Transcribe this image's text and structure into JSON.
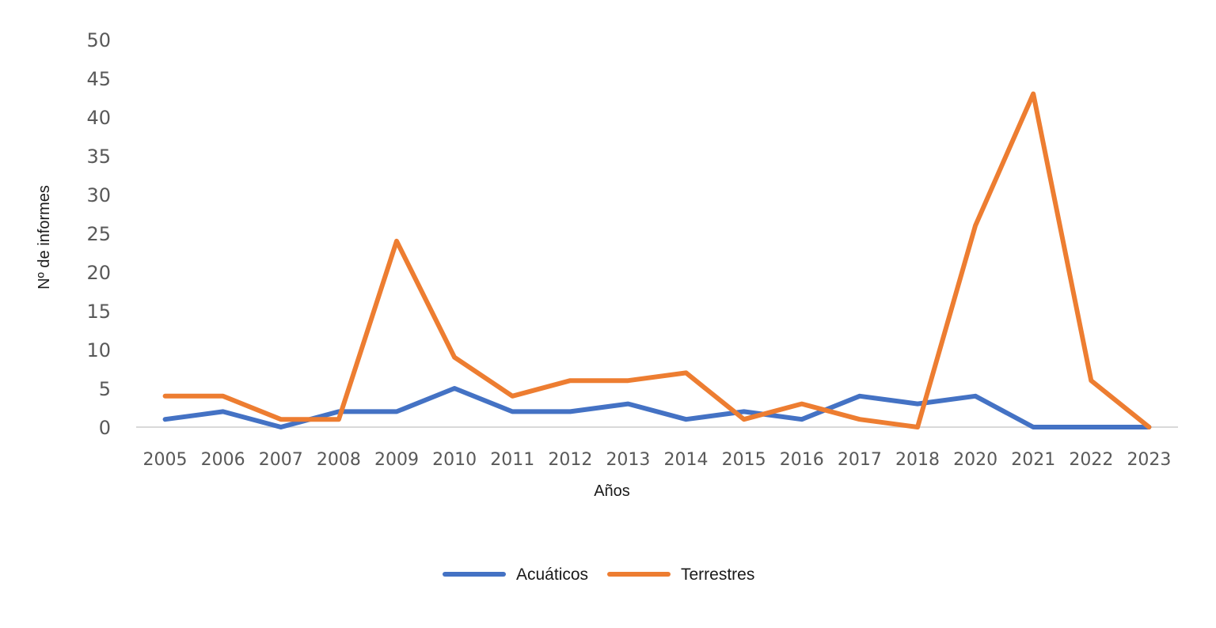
{
  "chart_data": {
    "type": "line",
    "title": "",
    "xlabel": "Años",
    "ylabel": "Nº de informes",
    "categories": [
      "2005",
      "2006",
      "2007",
      "2008",
      "2009",
      "2010",
      "2011",
      "2012",
      "2013",
      "2014",
      "2015",
      "2016",
      "2017",
      "2018",
      "2020",
      "2021",
      "2022",
      "2023"
    ],
    "ylim": [
      0,
      50
    ],
    "yticks": [
      "0",
      "5",
      "10",
      "15",
      "20",
      "25",
      "30",
      "35",
      "40",
      "45",
      "50"
    ],
    "grid": false,
    "legend_position": "bottom",
    "series": [
      {
        "name": "Acuáticos",
        "color": "#4472c4",
        "values": [
          1,
          2,
          0,
          2,
          2,
          5,
          2,
          2,
          3,
          1,
          2,
          1,
          4,
          3,
          4,
          0,
          0,
          0
        ]
      },
      {
        "name": "Terrestres",
        "color": "#ed7d31",
        "values": [
          4,
          4,
          1,
          1,
          24,
          9,
          4,
          6,
          6,
          7,
          1,
          3,
          1,
          0,
          26,
          43,
          6,
          0
        ]
      }
    ]
  }
}
